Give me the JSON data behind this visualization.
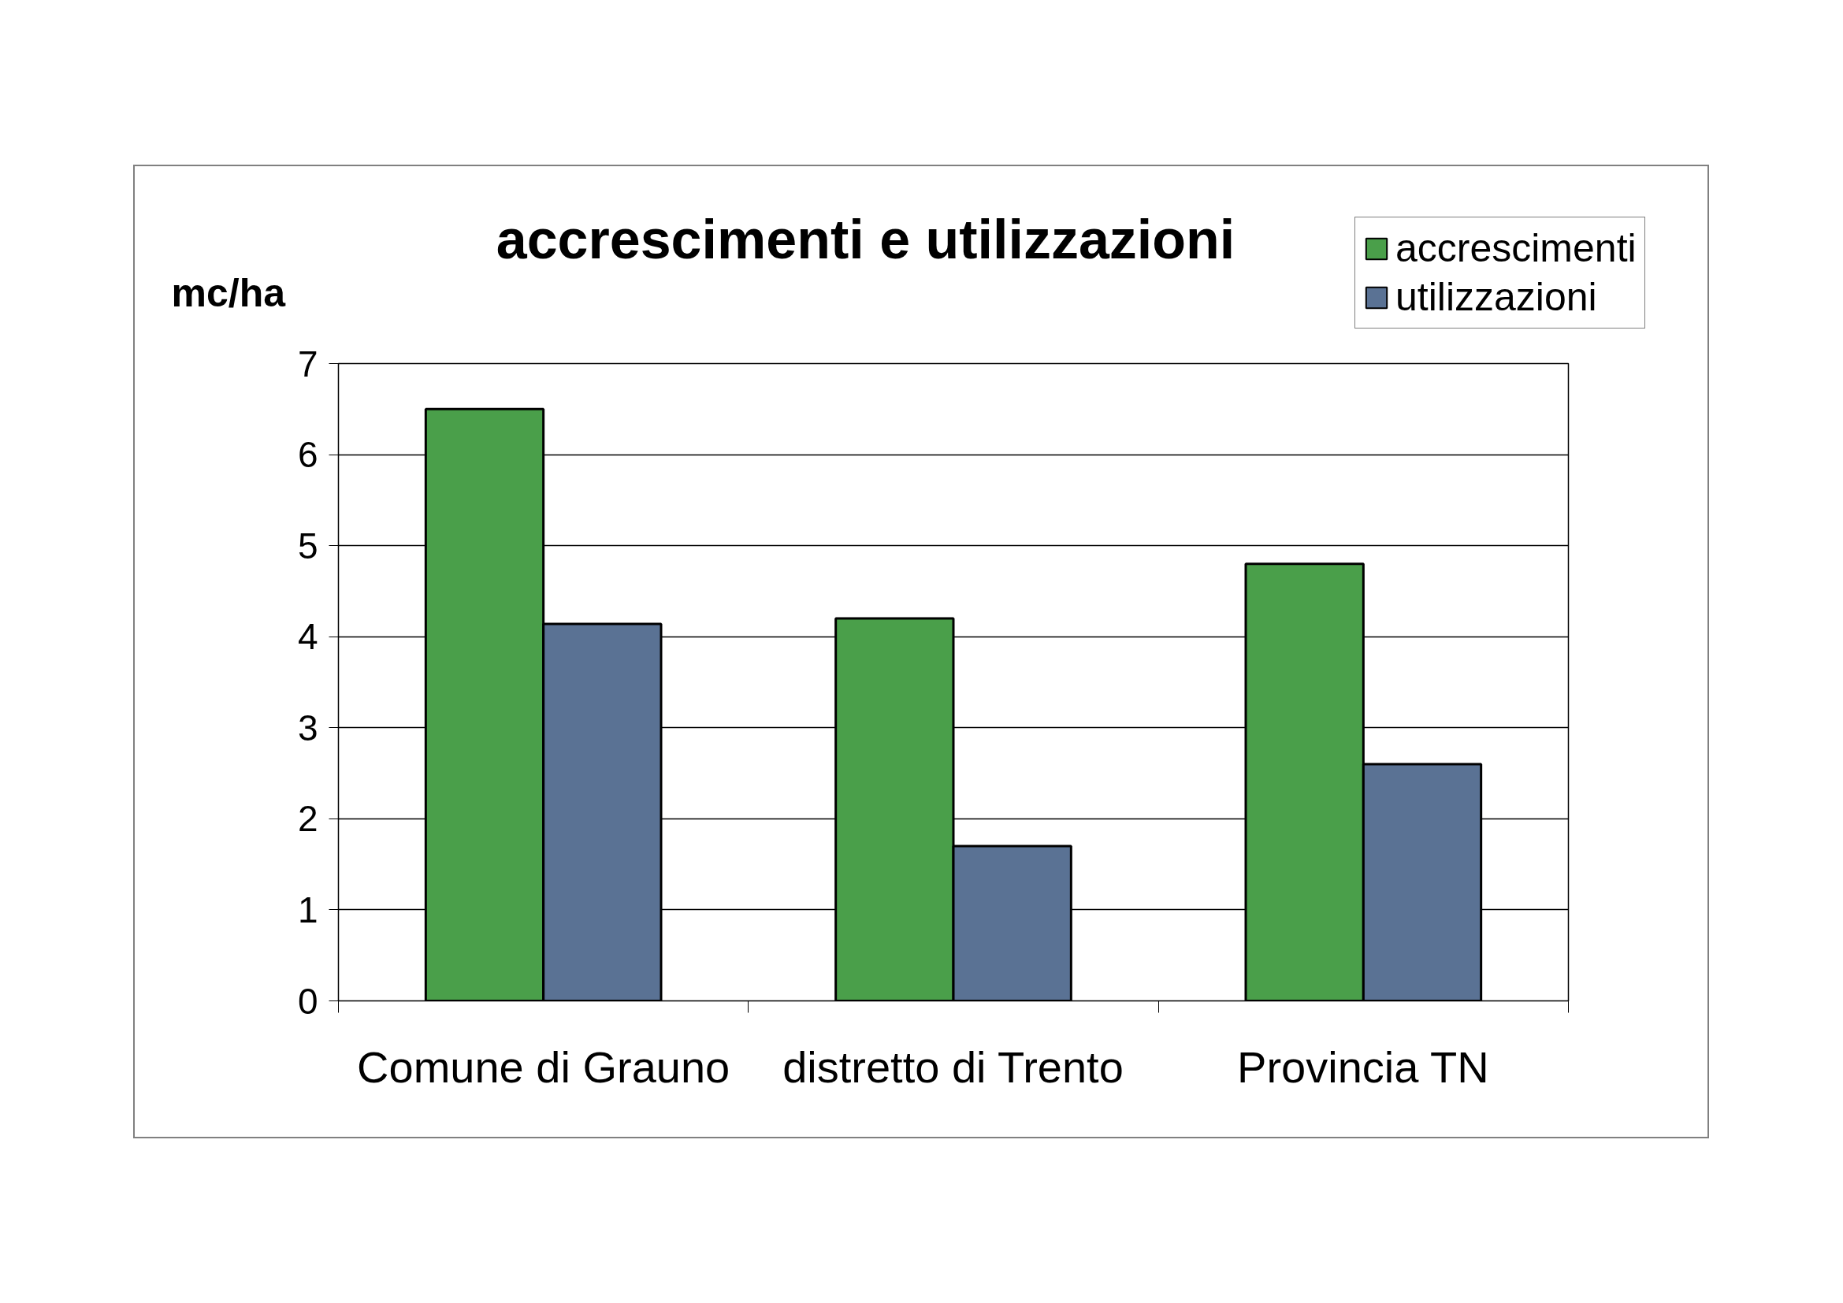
{
  "chart_data": {
    "type": "bar",
    "title": "accrescimenti e utilizzazioni",
    "ylabel": "mc/ha",
    "categories": [
      "Comune di Grauno",
      "distretto di Trento",
      "Provincia TN"
    ],
    "series": [
      {
        "name": "accrescimenti",
        "color": "#4a9f4a",
        "values": [
          6.5,
          4.2,
          4.8
        ]
      },
      {
        "name": "utilizzazioni",
        "color": "#5a7294",
        "values": [
          4.14,
          1.7,
          2.6
        ]
      }
    ],
    "ylim": [
      0,
      7
    ],
    "yticks": [
      0,
      1,
      2,
      3,
      4,
      5,
      6,
      7
    ],
    "grid": "y",
    "legend": "top right"
  }
}
